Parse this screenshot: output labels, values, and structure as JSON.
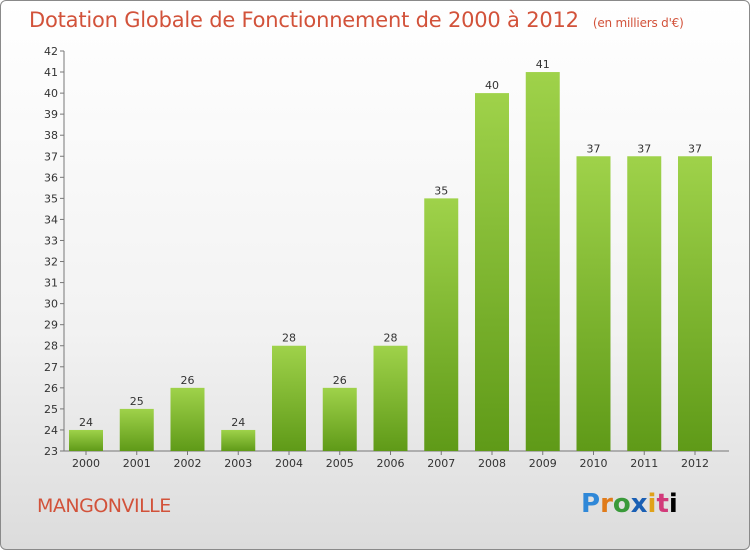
{
  "title": "Dotation Globale de Fonctionnement de 2000 à 2012",
  "unit": "(en milliers d'€)",
  "commune": "MANGONVILLE",
  "logo": "Proxiti",
  "colors": {
    "bar_top": "#9fd24a",
    "bar_bottom": "#5f9a18",
    "title": "#d2523a"
  },
  "chart_data": {
    "type": "bar",
    "categories": [
      "2000",
      "2001",
      "2002",
      "2003",
      "2004",
      "2005",
      "2006",
      "2007",
      "2008",
      "2009",
      "2010",
      "2011",
      "2012"
    ],
    "values": [
      24,
      25,
      26,
      24,
      28,
      26,
      28,
      35,
      40,
      41,
      37,
      37,
      37
    ],
    "ylim": [
      23,
      42
    ],
    "yticks": [
      23,
      24,
      25,
      26,
      27,
      28,
      29,
      30,
      31,
      32,
      33,
      34,
      35,
      36,
      37,
      38,
      39,
      40,
      41,
      42
    ],
    "grid": false
  }
}
